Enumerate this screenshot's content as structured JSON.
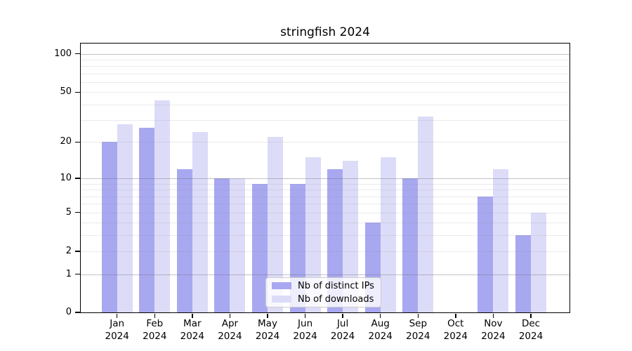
{
  "chart_data": {
    "type": "bar",
    "title": "stringfish 2024",
    "categories": [
      "Jan",
      "Feb",
      "Mar",
      "Apr",
      "May",
      "Jun",
      "Jul",
      "Aug",
      "Sep",
      "Oct",
      "Nov",
      "Dec"
    ],
    "category_year": "2024",
    "series": [
      {
        "name": "Nb of distinct IPs",
        "color": "#a8a8f0",
        "values": [
          20,
          26,
          12,
          10,
          9,
          9,
          12,
          4,
          10,
          0,
          7,
          3
        ]
      },
      {
        "name": "Nb of downloads",
        "color": "#dcdcf8",
        "values": [
          28,
          43,
          24,
          10,
          22,
          15,
          14,
          15,
          32,
          0,
          12,
          5
        ]
      }
    ],
    "xlabel": "",
    "ylabel": "",
    "yscale": "log1p",
    "yticks": [
      0,
      1,
      2,
      5,
      10,
      20,
      50,
      100
    ],
    "ytick_labels": [
      "0",
      "1",
      "2",
      "5",
      "10",
      "20",
      "50",
      "100"
    ],
    "major_grid_values": [
      1,
      10,
      100
    ],
    "minor_grid_values": [
      2,
      3,
      4,
      5,
      6,
      7,
      8,
      9,
      20,
      30,
      40,
      50,
      60,
      70,
      80,
      90
    ],
    "ylim": [
      0,
      120
    ],
    "grid": "on",
    "legend_position": "lower center"
  }
}
